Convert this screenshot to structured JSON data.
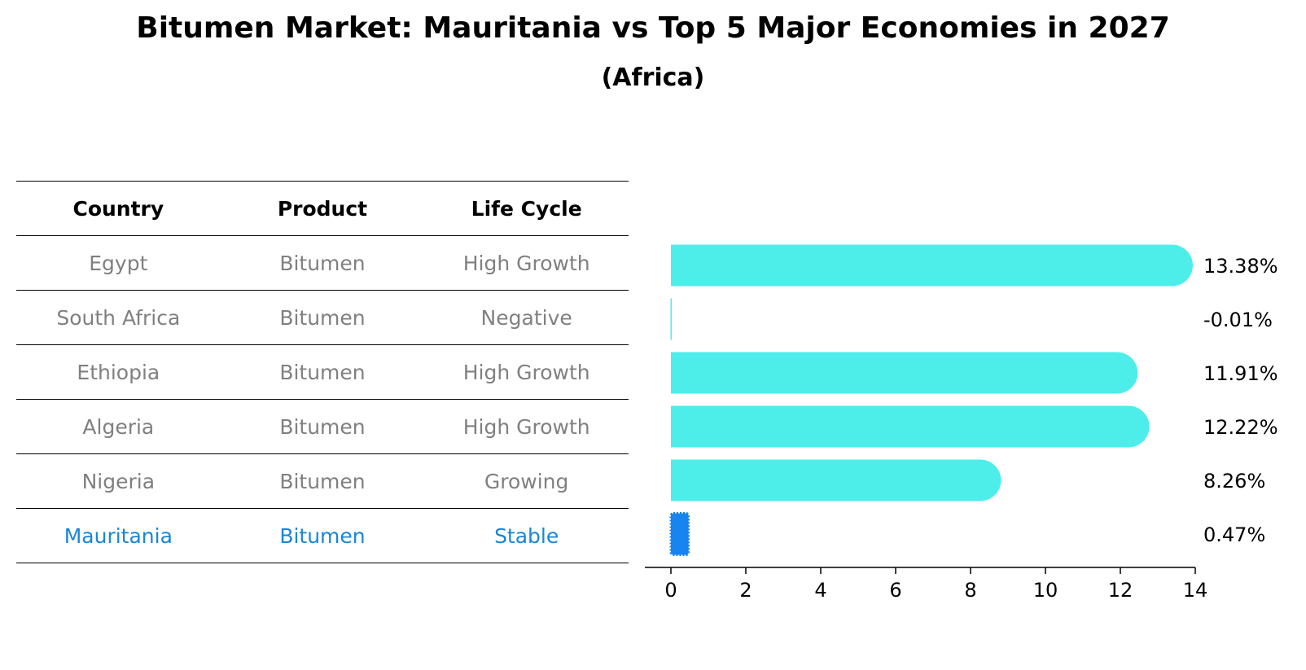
{
  "colors": {
    "bar": "#4DEEEA",
    "highlight_bar": "#1784EF",
    "highlight_text": "#1A86D6",
    "muted_text": "#808080"
  },
  "table": {
    "headers": [
      "Country",
      "Product",
      "Life Cycle"
    ],
    "rows": [
      {
        "country": "Egypt",
        "product": "Bitumen",
        "life_cycle": "High Growth"
      },
      {
        "country": "South Africa",
        "product": "Bitumen",
        "life_cycle": "Negative"
      },
      {
        "country": "Ethiopia",
        "product": "Bitumen",
        "life_cycle": "High Growth"
      },
      {
        "country": "Algeria",
        "product": "Bitumen",
        "life_cycle": "High Growth"
      },
      {
        "country": "Nigeria",
        "product": "Bitumen",
        "life_cycle": "Growing"
      },
      {
        "country": "Mauritania",
        "product": "Bitumen",
        "life_cycle": "Stable"
      }
    ]
  },
  "chart_data": {
    "type": "bar",
    "orientation": "horizontal",
    "title": "Bitumen Market: Mauritania vs Top 5 Major Economies in 2027",
    "subtitle": "(Africa)",
    "categories": [
      "Egypt",
      "South Africa",
      "Ethiopia",
      "Algeria",
      "Nigeria",
      "Mauritania"
    ],
    "values": [
      13.38,
      -0.01,
      11.91,
      12.22,
      8.26,
      0.47
    ],
    "value_labels": [
      "13.38%",
      "-0.01%",
      "11.91%",
      "12.22%",
      "8.26%",
      "0.47%"
    ],
    "highlight": "Mauritania",
    "xlim": [
      -0.7,
      14
    ],
    "xticks": [
      0,
      2,
      4,
      6,
      8,
      10,
      12,
      14
    ],
    "xlabel": "",
    "ylabel": "",
    "grid": false
  }
}
